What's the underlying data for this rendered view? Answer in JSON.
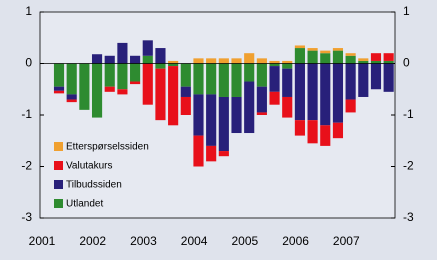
{
  "chart_data": {
    "type": "bar",
    "stacked": true,
    "categories": [
      "2001",
      null,
      null,
      null,
      "2002",
      null,
      null,
      null,
      "2003",
      null,
      null,
      null,
      "2004",
      null,
      null,
      null,
      "2005",
      null,
      null,
      null,
      "2006",
      null,
      null,
      null,
      "2007",
      null,
      null,
      null
    ],
    "series": [
      {
        "name": "Etterspørselssiden",
        "color": "#f0a030",
        "values": [
          null,
          0,
          0,
          0,
          0,
          0,
          0,
          0,
          0,
          0,
          0.05,
          0,
          0.1,
          0.1,
          0.1,
          0.1,
          0.2,
          0.1,
          0.05,
          0.05,
          0.05,
          0.05,
          0.05,
          0.05,
          0.05,
          0.05,
          0,
          0
        ]
      },
      {
        "name": "Valutakurs",
        "color": "#e8101a",
        "values": [
          null,
          -0.05,
          -0.05,
          0,
          0,
          -0.1,
          -0.1,
          -0.05,
          -0.8,
          -1.0,
          -1.15,
          -0.35,
          -0.6,
          -0.3,
          -0.1,
          0,
          0,
          -0.05,
          -0.25,
          -0.4,
          -0.3,
          -0.45,
          -0.4,
          -0.3,
          -0.25,
          0,
          0.15,
          0.15
        ]
      },
      {
        "name": "Tilbudssiden",
        "color": "#28207a",
        "values": [
          null,
          -0.08,
          -0.1,
          0,
          0.18,
          0.15,
          0.4,
          0.15,
          0.3,
          0.3,
          0,
          -0.2,
          -0.8,
          -1.0,
          -1.05,
          -0.7,
          -1.0,
          -0.5,
          -0.5,
          -0.55,
          -1.1,
          -1.1,
          -1.2,
          -1.15,
          -0.7,
          -0.65,
          -0.5,
          -0.55
        ]
      },
      {
        "name": "Utlandet",
        "color": "#2e8b30",
        "values": [
          null,
          -0.45,
          -0.6,
          -0.9,
          -1.05,
          -0.45,
          -0.5,
          -0.35,
          0.15,
          -0.1,
          -0.05,
          -0.45,
          -0.6,
          -0.6,
          -0.65,
          -0.65,
          -0.35,
          -0.45,
          -0.05,
          -0.1,
          0.3,
          0.25,
          0.2,
          0.25,
          0.15,
          0.05,
          0.05,
          0.05
        ]
      }
    ],
    "ylim": [
      -3,
      1
    ],
    "yticks": [
      -3,
      -2,
      -1,
      0,
      1
    ],
    "y2lim": [
      -3,
      1
    ],
    "y2ticks": [
      -3,
      -2,
      -1,
      0,
      1
    ],
    "legend": "lower left"
  }
}
